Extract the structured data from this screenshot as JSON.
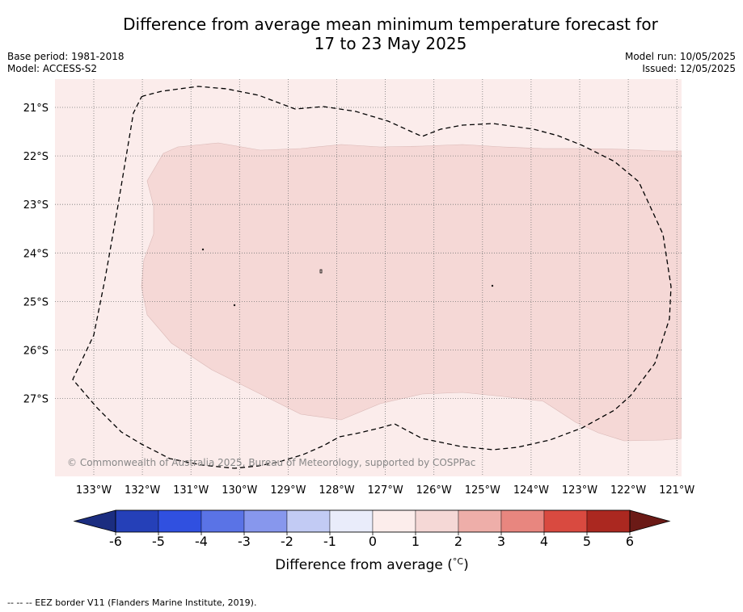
{
  "header": {
    "title_line1": "Difference from average mean minimum temperature forecast for",
    "title_line2": "17 to 23 May 2025",
    "base_period": "Base period: 1981-2018",
    "model": "Model: ACCESS-S2",
    "model_run": "Model run: 10/05/2025",
    "issued": "Issued: 12/05/2025"
  },
  "map": {
    "copyright": "© Commonwealth of Australia 2025, Bureau of Meteorology, supported by COSPPac",
    "lon_labels": [
      "133°W",
      "132°W",
      "131°W",
      "130°W",
      "129°W",
      "128°W",
      "127°W",
      "126°W",
      "125°W",
      "124°W",
      "123°W",
      "122°W",
      "121°W"
    ],
    "lat_labels": [
      "21°S",
      "22°S",
      "23°S",
      "24°S",
      "25°S",
      "26°S",
      "27°S"
    ],
    "fill_colors": {
      "background_0_to_1": "#fbeceb",
      "anomaly_1_to_2": "#f5d8d6"
    },
    "dominant_anomaly_range": "0 to 2"
  },
  "colorbar": {
    "ticks": [
      "-6",
      "-5",
      "-4",
      "-3",
      "-2",
      "-1",
      "0",
      "1",
      "2",
      "3",
      "4",
      "5",
      "6"
    ],
    "colors": [
      "#1b2d80",
      "#2540b8",
      "#3050e0",
      "#5a73e6",
      "#8797ed",
      "#c2cbf4",
      "#e9ecfa",
      "#fcedeb",
      "#f5d8d6",
      "#eeaea9",
      "#e8867f",
      "#d94a40",
      "#ab2820",
      "#6b1a16"
    ],
    "label": "Difference from average (",
    "label_unit": "°C",
    "label_close": ")"
  },
  "footnote": "--  --  -- EEZ border V11 (Flanders Marine Institute, 2019)."
}
